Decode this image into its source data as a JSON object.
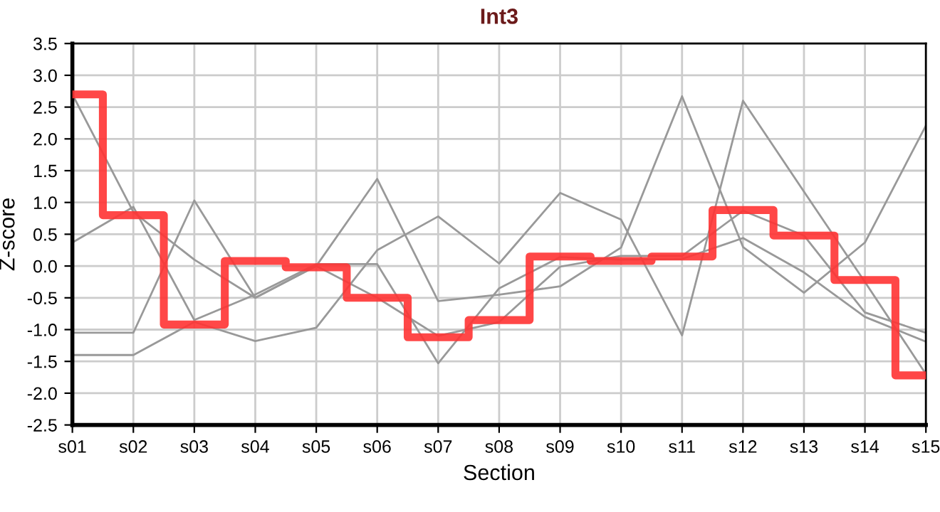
{
  "chart_data": {
    "type": "line",
    "title": "Int3",
    "xlabel": "Section",
    "ylabel": "Z-score",
    "categories": [
      "s01",
      "s02",
      "s03",
      "s04",
      "s05",
      "s06",
      "s07",
      "s08",
      "s09",
      "s10",
      "s11",
      "s12",
      "s13",
      "s14",
      "s15"
    ],
    "series": [
      {
        "color": "#999999",
        "values": [
          2.7,
          0.85,
          0.1,
          -0.5,
          0.0,
          -0.5,
          -1.1,
          -0.88,
          -0.01,
          0.16,
          0.16,
          0.87,
          0.48,
          -0.73,
          -1.05
        ]
      },
      {
        "color": "#999999",
        "values": [
          0.37,
          0.93,
          -0.85,
          -0.45,
          0.03,
          0.03,
          -1.53,
          -0.35,
          0.14,
          0.1,
          0.11,
          0.44,
          -0.1,
          -0.8,
          -1.19
        ]
      },
      {
        "color": "#999999",
        "values": [
          -1.05,
          -1.05,
          1.03,
          -0.5,
          0.0,
          1.37,
          -0.55,
          -0.45,
          -0.32,
          0.29,
          2.67,
          0.3,
          -0.42,
          0.37,
          2.21
        ]
      },
      {
        "color": "#999999",
        "values": [
          -1.4,
          -1.4,
          -0.88,
          -1.18,
          -0.97,
          0.25,
          0.78,
          0.04,
          1.15,
          0.73,
          -1.09,
          2.6,
          1.17,
          -0.25,
          -1.7
        ]
      },
      {
        "type": "step",
        "color": "#ff3333",
        "values": [
          2.7,
          0.8,
          -0.92,
          0.08,
          -0.02,
          -0.5,
          -1.12,
          -0.85,
          0.15,
          0.08,
          0.15,
          0.88,
          0.48,
          -0.22,
          -1.72
        ]
      }
    ],
    "ylim": [
      -2.5,
      3.5
    ],
    "yticks": [
      -2.5,
      {
        "value": -2,
        "label": "-2.0"
      },
      -1.5,
      {
        "value": -1,
        "label": "-1.0"
      },
      -0.5,
      {
        "value": 0,
        "label": "0.0"
      },
      0.5,
      {
        "value": 1,
        "label": "1.0"
      },
      1.5,
      {
        "value": 2,
        "label": "2.0"
      },
      2.5,
      {
        "value": 3,
        "label": "3.0"
      },
      3.5
    ],
    "grid": true
  }
}
